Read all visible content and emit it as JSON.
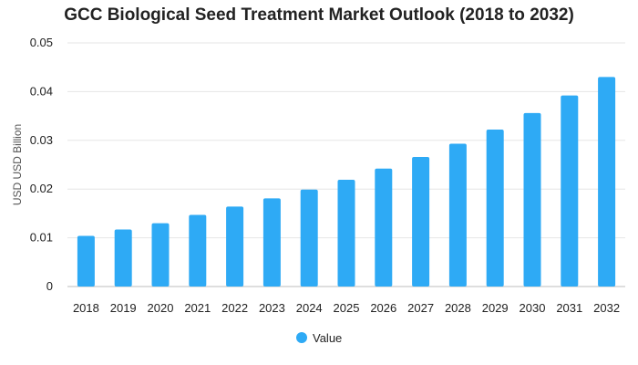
{
  "chart_data": {
    "type": "bar",
    "title": "GCC Biological Seed Treatment Market Outlook (2018 to 2032)",
    "xlabel": "",
    "ylabel": "USD USD Billion",
    "ylim": [
      0,
      0.05
    ],
    "yticks": [
      "0",
      "0.01",
      "0.02",
      "0.03",
      "0.04",
      "0.05"
    ],
    "grid": true,
    "legend_position": "bottom",
    "bar_color": "#2eaaf5",
    "categories": [
      "2018",
      "2019",
      "2020",
      "2021",
      "2022",
      "2023",
      "2024",
      "2025",
      "2026",
      "2027",
      "2028",
      "2029",
      "2030",
      "2031",
      "2032"
    ],
    "series": [
      {
        "name": "Value",
        "values": [
          0.0104,
          0.0117,
          0.013,
          0.0147,
          0.0164,
          0.0181,
          0.0199,
          0.0219,
          0.0242,
          0.0266,
          0.0293,
          0.0322,
          0.0356,
          0.0392,
          0.043
        ]
      }
    ]
  }
}
